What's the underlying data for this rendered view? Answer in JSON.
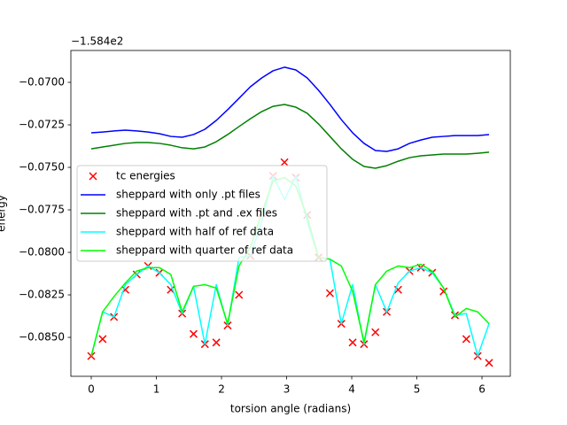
{
  "chart_data": {
    "type": "line",
    "x_label": "torsion angle (radians)",
    "y_label": "energy",
    "y_offset_text": "−1.584e2",
    "xlim": [
      -0.313,
      6.435
    ],
    "ylim": [
      -0.08729,
      -0.068125
    ],
    "xticks": [
      0,
      1,
      2,
      3,
      4,
      5,
      6
    ],
    "yticks": [
      {
        "value": -0.07,
        "label": "−0.0700"
      },
      {
        "value": -0.0725,
        "label": "−0.0725"
      },
      {
        "value": -0.075,
        "label": "−0.0750"
      },
      {
        "value": -0.0775,
        "label": "−0.0775"
      },
      {
        "value": -0.08,
        "label": "−0.0800"
      },
      {
        "value": -0.0825,
        "label": "−0.0825"
      },
      {
        "value": -0.085,
        "label": "−0.0850"
      }
    ],
    "x": [
      0,
      0.1745,
      0.3491,
      0.5236,
      0.6981,
      0.8727,
      1.0472,
      1.2217,
      1.3963,
      1.5708,
      1.7453,
      1.9199,
      2.0944,
      2.2689,
      2.4435,
      2.618,
      2.7925,
      2.9671,
      3.1416,
      3.3161,
      3.4907,
      3.6652,
      3.8397,
      4.0143,
      4.1888,
      4.3633,
      4.5379,
      4.7124,
      4.8869,
      5.0615,
      5.236,
      5.4105,
      5.5851,
      5.7596,
      5.9341,
      6.1087
    ],
    "legend": "center left",
    "series": [
      {
        "name": "tc energies",
        "type": "scatter",
        "color": "#ff0000",
        "values": [
          -0.0861,
          -0.0851,
          -0.0838,
          -0.0822,
          -0.0813,
          -0.0808,
          -0.0812,
          -0.0822,
          -0.0836,
          -0.0848,
          -0.0854,
          -0.0853,
          -0.0843,
          -0.0825,
          -0.0802,
          -0.0777,
          -0.0755,
          -0.0747,
          -0.0756,
          -0.0778,
          -0.0803,
          -0.0824,
          -0.0842,
          -0.0853,
          -0.0854,
          -0.0847,
          -0.0835,
          -0.0822,
          -0.0811,
          -0.0809,
          -0.0812,
          -0.0823,
          -0.0837,
          -0.0851,
          -0.0861,
          -0.0865
        ]
      },
      {
        "name": "sheppard with only .pt files",
        "color": "#0000ff",
        "values": [
          -0.07297,
          -0.07292,
          -0.07286,
          -0.07281,
          -0.07286,
          -0.07292,
          -0.07302,
          -0.07318,
          -0.07323,
          -0.07307,
          -0.07276,
          -0.07224,
          -0.07161,
          -0.07094,
          -0.07026,
          -0.06974,
          -0.06932,
          -0.06911,
          -0.06927,
          -0.06974,
          -0.07047,
          -0.0713,
          -0.07219,
          -0.07297,
          -0.07359,
          -0.07401,
          -0.07406,
          -0.07391,
          -0.07359,
          -0.07339,
          -0.07323,
          -0.07318,
          -0.07313,
          -0.07313,
          -0.07313,
          -0.07307
        ]
      },
      {
        "name": "sheppard with .pt and .ex files",
        "color": "#008000",
        "values": [
          -0.07391,
          -0.0738,
          -0.0737,
          -0.07359,
          -0.07354,
          -0.07354,
          -0.07359,
          -0.0737,
          -0.07385,
          -0.07391,
          -0.0738,
          -0.07349,
          -0.07307,
          -0.0726,
          -0.07214,
          -0.07172,
          -0.07141,
          -0.0713,
          -0.07146,
          -0.07182,
          -0.07245,
          -0.07318,
          -0.07391,
          -0.07453,
          -0.07495,
          -0.07505,
          -0.0749,
          -0.07464,
          -0.07443,
          -0.07432,
          -0.07427,
          -0.07422,
          -0.07422,
          -0.07422,
          -0.07417,
          -0.07411
        ]
      },
      {
        "name": "sheppard with half of ref data",
        "color": "#00ffff",
        "values": [
          -0.0861,
          -0.0835,
          -0.0838,
          -0.0819,
          -0.0813,
          -0.0808,
          -0.0812,
          -0.0819,
          -0.0836,
          -0.082,
          -0.0854,
          -0.0819,
          -0.0843,
          -0.0803,
          -0.0802,
          -0.0782,
          -0.0755,
          -0.0769,
          -0.0755,
          -0.0782,
          -0.0803,
          -0.0804,
          -0.0842,
          -0.0819,
          -0.0854,
          -0.0819,
          -0.0835,
          -0.0818,
          -0.0811,
          -0.0809,
          -0.0812,
          -0.0821,
          -0.0837,
          -0.0836,
          -0.0861,
          -0.0842
        ]
      },
      {
        "name": "sheppard with quarter of ref data",
        "color": "#00ff00",
        "values": [
          -0.0861,
          -0.0835,
          -0.0826,
          -0.0818,
          -0.0811,
          -0.0809,
          -0.0809,
          -0.0813,
          -0.0835,
          -0.082,
          -0.0819,
          -0.0821,
          -0.0842,
          -0.0808,
          -0.0797,
          -0.0777,
          -0.0758,
          -0.0756,
          -0.0761,
          -0.0779,
          -0.0803,
          -0.0804,
          -0.0808,
          -0.0823,
          -0.0853,
          -0.0819,
          -0.0811,
          -0.0808,
          -0.0809,
          -0.0807,
          -0.0811,
          -0.0821,
          -0.0838,
          -0.0833,
          -0.0835,
          -0.0842
        ]
      }
    ]
  }
}
